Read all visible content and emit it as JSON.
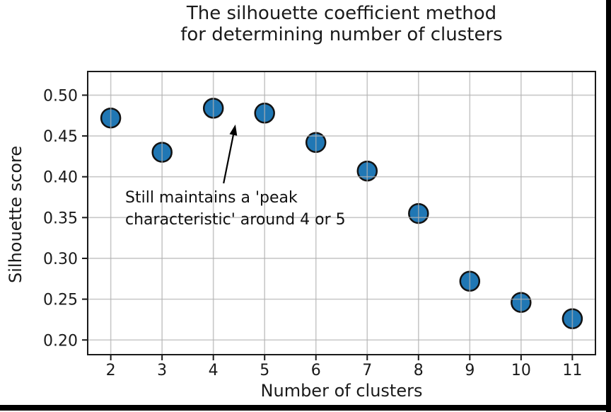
{
  "chart_data": {
    "type": "scatter",
    "title": "The silhouette coefficient method\nfor determining number of clusters",
    "xlabel": "Number of clusters",
    "ylabel": "Silhouette score",
    "x": [
      2,
      3,
      4,
      5,
      6,
      7,
      8,
      9,
      10,
      11
    ],
    "y": [
      0.472,
      0.43,
      0.484,
      0.478,
      0.442,
      0.407,
      0.355,
      0.272,
      0.246,
      0.226
    ],
    "x_ticks": [
      2,
      3,
      4,
      5,
      6,
      7,
      8,
      9,
      10,
      11
    ],
    "y_ticks": [
      0.2,
      0.25,
      0.3,
      0.35,
      0.4,
      0.45,
      0.5
    ],
    "xlim": [
      1.55,
      11.45
    ],
    "ylim": [
      0.182,
      0.529
    ],
    "grid": true,
    "legend": false,
    "colors": {
      "marker_fill": "#2077b4",
      "marker_edge": "#121212",
      "grid_line": "#b0b0b0",
      "axis_line": "#1a1a1a",
      "text": "#1a1a1a",
      "window_border": "#000000"
    },
    "annotation": {
      "text": "Still maintains a 'peak\ncharacteristic' around 4 or 5",
      "arrow_from": {
        "x": 4.2,
        "y": 0.392
      },
      "arrow_to": {
        "x": 4.43,
        "y": 0.464
      }
    }
  }
}
